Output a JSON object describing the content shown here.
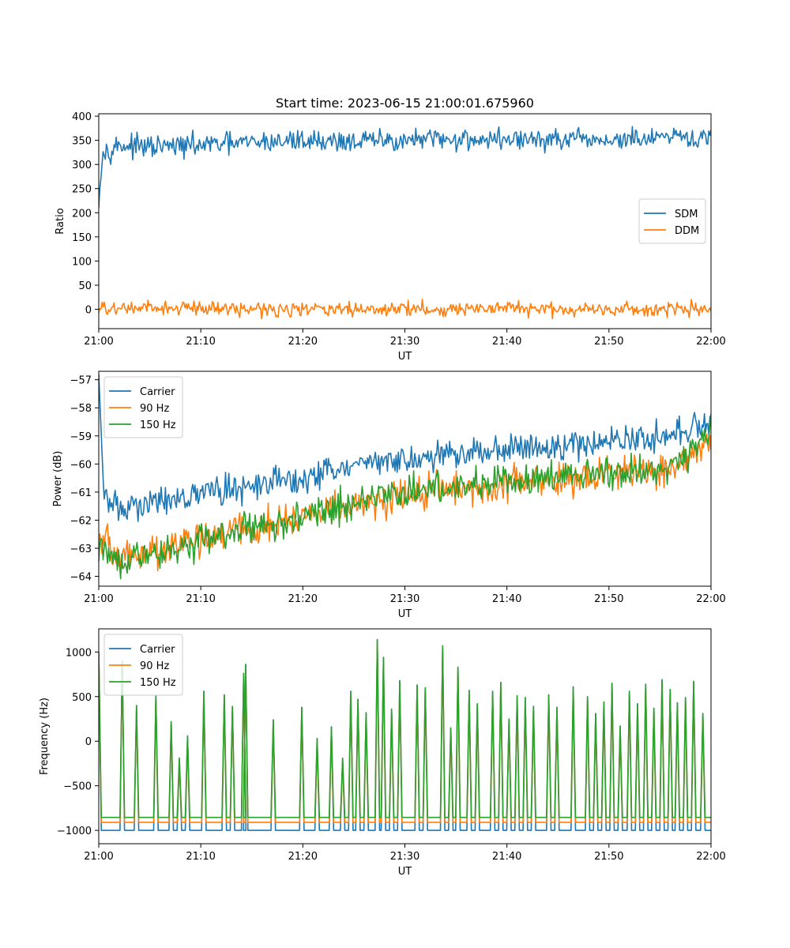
{
  "figure": {
    "title": "Start time: 2023-06-15 21:00:01.675960",
    "colors": {
      "blue": "#1f77b4",
      "orange": "#ff7f0e",
      "green": "#2ca02c"
    }
  },
  "chart_data": [
    {
      "type": "line",
      "title": "Start time: 2023-06-15 21:00:01.675960",
      "xlabel": "UT",
      "ylabel": "Ratio",
      "x_range": [
        "21:00",
        "22:00"
      ],
      "x_ticks": [
        "21:00",
        "21:10",
        "21:20",
        "21:30",
        "21:40",
        "21:50",
        "22:00"
      ],
      "x_tick_minutes": [
        0,
        10,
        20,
        30,
        40,
        50,
        60
      ],
      "ylim": [
        -40,
        405
      ],
      "y_ticks": [
        0,
        50,
        100,
        150,
        200,
        250,
        300,
        350,
        400
      ],
      "legend_position": "center-right",
      "grid": false,
      "series": [
        {
          "name": "SDM",
          "color": "#1f77b4",
          "x_minutes": [
            0,
            0.3,
            2,
            5,
            10,
            15,
            20,
            25,
            30,
            35,
            40,
            45,
            50,
            55,
            60
          ],
          "values": [
            210,
            325,
            340,
            335,
            340,
            345,
            350,
            348,
            350,
            352,
            352,
            350,
            350,
            353,
            355
          ]
        },
        {
          "name": "DDM",
          "color": "#ff7f0e",
          "x_minutes": [
            0,
            5,
            10,
            15,
            20,
            25,
            30,
            35,
            40,
            45,
            50,
            55,
            60
          ],
          "values": [
            0,
            2,
            3,
            1,
            0,
            -1,
            2,
            0,
            1,
            0,
            1,
            -1,
            0
          ]
        }
      ]
    },
    {
      "type": "line",
      "xlabel": "UT",
      "ylabel": "Power (dB)",
      "x_range": [
        "21:00",
        "22:00"
      ],
      "x_ticks": [
        "21:00",
        "21:10",
        "21:20",
        "21:30",
        "21:40",
        "21:50",
        "22:00"
      ],
      "x_tick_minutes": [
        0,
        10,
        20,
        30,
        40,
        50,
        60
      ],
      "ylim": [
        -64.35,
        -56.7
      ],
      "y_ticks": [
        -64,
        -63,
        -62,
        -61,
        -60,
        -59,
        -58,
        -57
      ],
      "legend_position": "upper-left",
      "grid": false,
      "series": [
        {
          "name": "Carrier",
          "color": "#1f77b4",
          "x_minutes": [
            0,
            0.5,
            2,
            5,
            10,
            15,
            20,
            25,
            30,
            35,
            40,
            45,
            50,
            55,
            60
          ],
          "values": [
            -56.8,
            -61.2,
            -61.6,
            -61.4,
            -61.0,
            -60.8,
            -60.5,
            -60.1,
            -59.8,
            -59.7,
            -59.4,
            -59.4,
            -59.2,
            -59.0,
            -58.7
          ]
        },
        {
          "name": "90 Hz",
          "color": "#ff7f0e",
          "x_minutes": [
            0,
            2,
            5,
            10,
            15,
            20,
            25,
            30,
            35,
            40,
            45,
            50,
            55,
            60
          ],
          "values": [
            -62.5,
            -63.3,
            -63.2,
            -62.6,
            -62.3,
            -61.9,
            -61.5,
            -61.1,
            -60.9,
            -60.7,
            -60.5,
            -60.3,
            -60.2,
            -59.4
          ]
        },
        {
          "name": "150 Hz",
          "color": "#2ca02c",
          "x_minutes": [
            0,
            2,
            5,
            10,
            15,
            20,
            25,
            30,
            35,
            40,
            45,
            50,
            55,
            60
          ],
          "values": [
            -62.9,
            -63.4,
            -63.3,
            -62.7,
            -62.3,
            -61.9,
            -61.4,
            -61.0,
            -60.9,
            -60.6,
            -60.5,
            -60.3,
            -60.2,
            -59.0
          ]
        }
      ]
    },
    {
      "type": "line",
      "xlabel": "UT",
      "ylabel": "Frequency (Hz)",
      "x_range": [
        "21:00",
        "22:00"
      ],
      "x_ticks": [
        "21:00",
        "21:10",
        "21:20",
        "21:30",
        "21:40",
        "21:50",
        "22:00"
      ],
      "x_tick_minutes": [
        0,
        10,
        20,
        30,
        40,
        50,
        60
      ],
      "ylim": [
        -1150,
        1260
      ],
      "y_ticks": [
        -1000,
        -500,
        0,
        500,
        1000
      ],
      "legend_position": "upper-left",
      "grid": false,
      "baselines": {
        "Carrier": -1000,
        "90 Hz": -910,
        "150 Hz": -855
      },
      "spike_minutes": [
        0.1,
        2.3,
        3.7,
        5.6,
        7.1,
        7.9,
        8.7,
        10.3,
        12.3,
        13.1,
        14.2,
        14.4,
        17.1,
        19.9,
        21.4,
        22.8,
        23.9,
        24.7,
        25.4,
        26.2,
        27.3,
        27.9,
        28.7,
        29.5,
        31.2,
        32.0,
        33.7,
        34.5,
        35.2,
        36.3,
        37.1,
        38.6,
        39.4,
        40.2,
        41.0,
        41.8,
        42.6,
        44.1,
        44.9,
        46.5,
        47.9,
        48.7,
        49.5,
        50.3,
        51.1,
        52.0,
        52.8,
        53.6,
        54.4,
        55.2,
        56.0,
        56.7,
        57.5,
        58.3,
        59.2
      ],
      "spike_values": [
        1000,
        900,
        400,
        510,
        220,
        -190,
        60,
        560,
        520,
        390,
        760,
        860,
        240,
        380,
        30,
        160,
        -190,
        560,
        470,
        320,
        1140,
        940,
        360,
        680,
        630,
        600,
        1070,
        150,
        830,
        570,
        420,
        560,
        660,
        250,
        510,
        490,
        390,
        520,
        380,
        610,
        500,
        310,
        440,
        650,
        170,
        560,
        420,
        640,
        370,
        690,
        580,
        430,
        490,
        670,
        310
      ],
      "series": [
        {
          "name": "Carrier",
          "color": "#1f77b4"
        },
        {
          "name": "90 Hz",
          "color": "#ff7f0e"
        },
        {
          "name": "150 Hz",
          "color": "#2ca02c"
        }
      ]
    }
  ]
}
